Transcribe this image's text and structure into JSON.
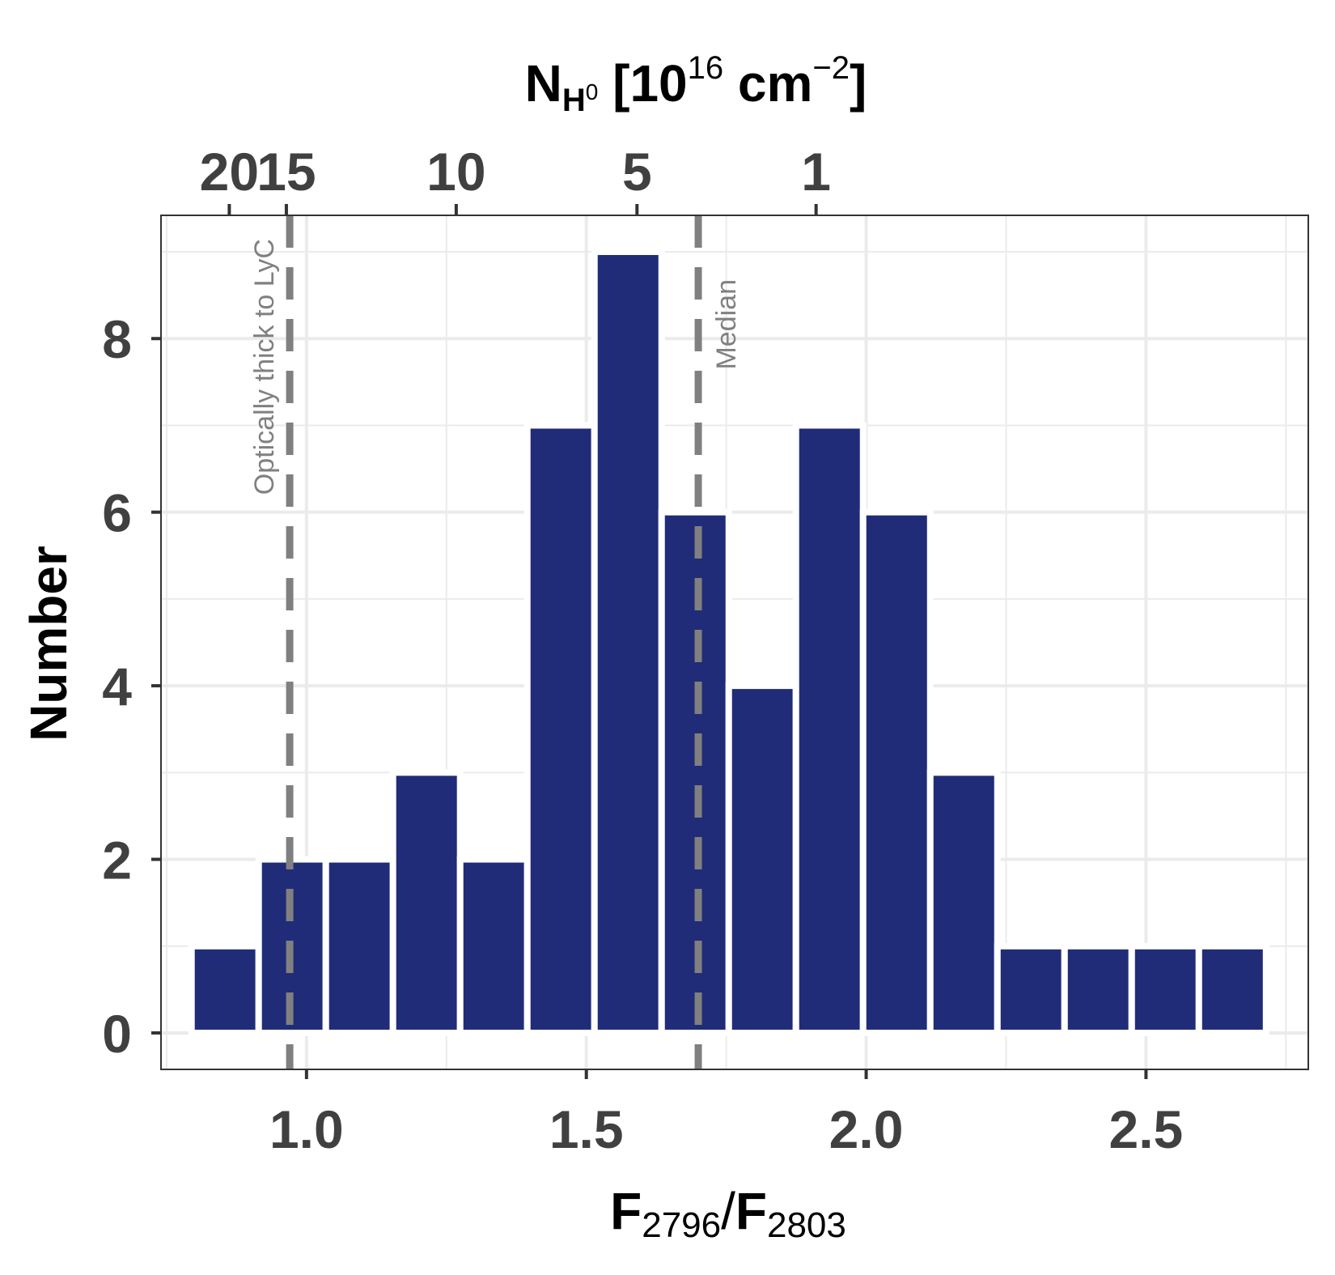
{
  "chart_data": {
    "type": "bar",
    "x_axis": {
      "label_main": "F",
      "label_sub1": "2796",
      "label_slash": "/",
      "label_main2": "F",
      "label_sub2": "2803",
      "range": [
        0.74,
        2.79
      ],
      "ticks": [
        1.0,
        1.5,
        2.0,
        2.5
      ],
      "tick_labels": [
        "1.0",
        "1.5",
        "2.0",
        "2.5"
      ]
    },
    "top_axis": {
      "label_N": "N",
      "label_H": "H",
      "label_0": "0",
      "label_bracket_open": " [10",
      "label_exp16": "16",
      "label_cm": " cm",
      "label_exp": "−2",
      "label_bracket_close": "]",
      "ticks": [
        {
          "label": "20",
          "x": 0.862
        },
        {
          "label": "15",
          "x": 0.964
        },
        {
          "label": "10",
          "x": 1.2675
        },
        {
          "label": "5",
          "x": 1.5905
        },
        {
          "label": "1",
          "x": 1.9105
        }
      ]
    },
    "y_axis": {
      "label": "Number",
      "range": [
        -0.42,
        9.42
      ],
      "ticks": [
        0,
        2,
        4,
        6,
        8
      ],
      "tick_labels": [
        "0",
        "2",
        "4",
        "6",
        "8"
      ]
    },
    "bars": [
      {
        "x": 0.8545,
        "value": 1
      },
      {
        "x": 0.9745,
        "value": 2
      },
      {
        "x": 1.0945,
        "value": 2
      },
      {
        "x": 1.2145,
        "value": 3
      },
      {
        "x": 1.3345,
        "value": 2
      },
      {
        "x": 1.4545,
        "value": 7
      },
      {
        "x": 1.5745,
        "value": 9
      },
      {
        "x": 1.6945,
        "value": 6
      },
      {
        "x": 1.8145,
        "value": 4
      },
      {
        "x": 1.9345,
        "value": 7
      },
      {
        "x": 2.0545,
        "value": 6
      },
      {
        "x": 2.1745,
        "value": 3
      },
      {
        "x": 2.2945,
        "value": 1
      },
      {
        "x": 2.4145,
        "value": 1
      },
      {
        "x": 2.5345,
        "value": 1
      },
      {
        "x": 2.6545,
        "value": 1
      }
    ],
    "bin_width": 0.12,
    "vlines": [
      {
        "x": 0.97,
        "label": "Optically thick to LyC"
      },
      {
        "x": 1.7,
        "label": "Median"
      }
    ],
    "colors": {
      "bar": "#202c78",
      "vline": "#808080",
      "grid": "#ebebeb"
    },
    "grid": true,
    "legend": "none"
  }
}
